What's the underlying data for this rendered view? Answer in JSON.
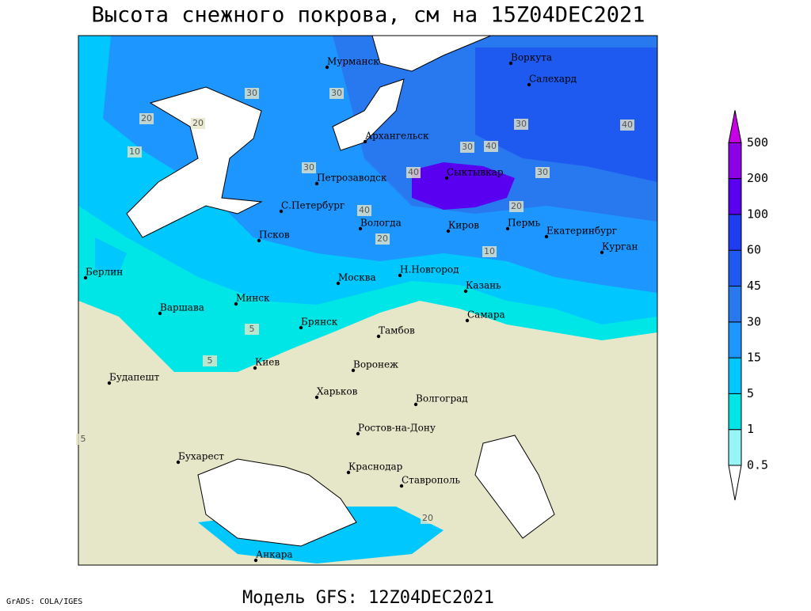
{
  "header": {
    "title": "Высота снежного покрова, см на 15Z04DEC2021"
  },
  "legend": {
    "levels": [
      0.5,
      1,
      5,
      15,
      30,
      45,
      60,
      100,
      200,
      500
    ],
    "colors": [
      "#ffffff",
      "#96f5f5",
      "#00e6e6",
      "#00c8ff",
      "#1e96ff",
      "#2878f0",
      "#1e5af0",
      "#1e3cf0",
      "#5a00f0",
      "#8c00e6",
      "#c800e6"
    ]
  },
  "map": {
    "cities": [
      "Мурманск",
      "Воркута",
      "Салехард",
      "Архангельск",
      "Сыктывкар",
      "Петрозаводск",
      "С.Петербург",
      "Вологда",
      "Киров",
      "Пермь",
      "Екатеринбург",
      "Курган",
      "Псков",
      "Берлин",
      "Н.Новгород",
      "Казань",
      "Москва",
      "Минск",
      "Варшава",
      "Самара",
      "Брянск",
      "Тамбов",
      "Киев",
      "Воронеж",
      "Будапешт",
      "Харьков",
      "Волгоград",
      "Ростов-на-Дону",
      "Бухарест",
      "Краснодар",
      "Ставрополь",
      "Анкара"
    ],
    "contour_labels": [
      30,
      30,
      20,
      20,
      10,
      30,
      40,
      30,
      40,
      30,
      20,
      20,
      10,
      5,
      5,
      5,
      40,
      40,
      30,
      20
    ]
  },
  "footer": {
    "credit": "GrADS: COLA/IGES",
    "model": "Модель GFS: 12Z04DEC2021"
  }
}
